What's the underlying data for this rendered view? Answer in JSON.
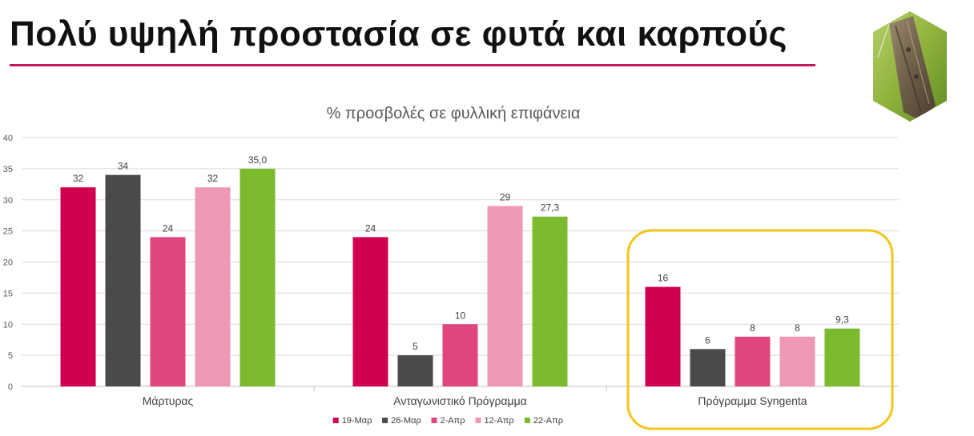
{
  "slide": {
    "title": "Πολύ υψηλή προστασία σε φυτά και καρπούς",
    "accent_color": "#c2185b",
    "highlight_color": "#f5c518",
    "photo_icon": "moth-photo-hexagon-icon"
  },
  "chart_data": {
    "type": "bar",
    "title": "% προσβολές σε φυλλική επιφάνεια",
    "xlabel": "",
    "ylabel": "",
    "ylim": [
      0,
      40
    ],
    "yticks": [
      "0",
      "5",
      "10",
      "15",
      "20",
      "25",
      "30",
      "35",
      "40"
    ],
    "grid": true,
    "legend_position": "bottom",
    "highlighted_category": "Πρόγραμμα Syngenta",
    "categories": [
      "Μάρτυρας",
      "Ανταγωνιστικό Πρόγραμμα",
      "Πρόγραμμα Syngenta"
    ],
    "series": [
      {
        "name": "19-Μαρ",
        "color": "#d1004f",
        "values": [
          32,
          24,
          16
        ],
        "labels": [
          "32",
          "24",
          "16"
        ]
      },
      {
        "name": "26-Μαρ",
        "color": "#4a4a4a",
        "values": [
          34,
          5,
          6
        ],
        "labels": [
          "34",
          "5",
          "6"
        ]
      },
      {
        "name": "2-Απρ",
        "color": "#e0457f",
        "values": [
          24,
          10,
          8
        ],
        "labels": [
          "24",
          "10",
          "8"
        ]
      },
      {
        "name": "12-Απρ",
        "color": "#ef97b6",
        "values": [
          32,
          29,
          8
        ],
        "labels": [
          "32",
          "29",
          "8"
        ]
      },
      {
        "name": "22-Απρ",
        "color": "#7cba2d",
        "values": [
          35.0,
          27.3,
          9.3
        ],
        "labels": [
          "35,0",
          "27,3",
          "9,3"
        ]
      }
    ]
  }
}
